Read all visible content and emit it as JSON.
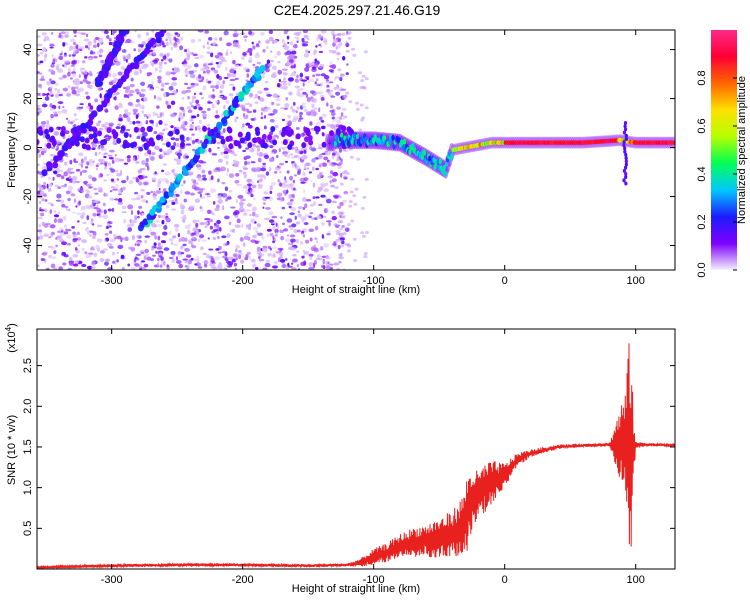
{
  "title": "C2E4.2025.297.21.46.G19",
  "chart_data": [
    {
      "type": "heatmap",
      "name": "spectrogram",
      "xlabel": "Height of straight line (km)",
      "ylabel": "Frequency (Hz)",
      "xlim": [
        -357,
        130
      ],
      "ylim": [
        -50,
        48
      ],
      "xticks": [
        -300,
        -200,
        -100,
        0,
        100
      ],
      "xtick_labels": [
        "-300",
        "-200",
        "-100",
        "0",
        "100"
      ],
      "yticks": [
        -40,
        -20,
        0,
        20,
        40
      ],
      "ytick_labels": [
        "-40",
        "-20",
        "0",
        "20",
        "40"
      ],
      "colorbar": {
        "label": "Normalized spectral amplitude",
        "range": [
          0.0,
          1.0
        ],
        "ticks": [
          0.0,
          0.2,
          0.4,
          0.6,
          0.8
        ],
        "tick_labels": [
          "0.0",
          "0.2",
          "0.4",
          "0.6",
          "0.8"
        ],
        "colormap": [
          "#f4f0fb",
          "#7f00ff",
          "#1c1cff",
          "#00c8ff",
          "#00ff55",
          "#b4ff00",
          "#ffe000",
          "#ff6600",
          "#ff0033",
          "#ff2a8a"
        ]
      },
      "features": {
        "noise_region_x": [
          -357,
          -120
        ],
        "signal_line": [
          [
            -130,
            3
          ],
          [
            -100,
            3
          ],
          [
            -80,
            2
          ],
          [
            -60,
            -4
          ],
          [
            -45,
            -9
          ],
          [
            -40,
            -1
          ],
          [
            -30,
            0
          ],
          [
            -10,
            2
          ],
          [
            0,
            2
          ],
          [
            60,
            2
          ],
          [
            88,
            3
          ],
          [
            100,
            2
          ],
          [
            130,
            2
          ]
        ],
        "bright_streak_1": [
          [
            -277,
            -33
          ],
          [
            -185,
            32
          ]
        ],
        "bright_streak_2": [
          [
            -350,
            -10
          ],
          [
            -260,
            48
          ]
        ],
        "bright_streak_3": [
          [
            -310,
            26
          ],
          [
            -290,
            48
          ]
        ]
      }
    },
    {
      "type": "line",
      "name": "snr",
      "xlabel": "Height of straight line (km)",
      "ylabel": "SNR (10 * v/v)",
      "y_multiplier": "(x10",
      "y_multiplier_exp": "4",
      "y_multiplier_close": ")",
      "xlim": [
        -357,
        130
      ],
      "ylim": [
        0,
        2.95
      ],
      "xticks": [
        -300,
        -200,
        -100,
        0,
        100
      ],
      "xtick_labels": [
        "-300",
        "-200",
        "-100",
        "0",
        "100"
      ],
      "yticks": [
        0.5,
        1.0,
        1.5,
        2.0,
        2.5
      ],
      "ytick_labels": [
        "0.5",
        "1.0",
        "1.5",
        "2.0",
        "2.5"
      ],
      "color": "#e8211f",
      "series": [
        {
          "name": "SNR",
          "x": [
            -357,
            -300,
            -250,
            -200,
            -150,
            -120,
            -110,
            -100,
            -90,
            -80,
            -70,
            -60,
            -50,
            -40,
            -32,
            -28,
            -25,
            -20,
            -15,
            -10,
            -5,
            0,
            5,
            10,
            20,
            30,
            40,
            60,
            80,
            88,
            92,
            95,
            97,
            98,
            100,
            105,
            110,
            130
          ],
          "y": [
            0.02,
            0.04,
            0.05,
            0.05,
            0.04,
            0.05,
            0.08,
            0.15,
            0.2,
            0.28,
            0.33,
            0.35,
            0.38,
            0.42,
            0.55,
            0.7,
            0.85,
            0.9,
            1.0,
            1.05,
            1.1,
            1.15,
            1.25,
            1.35,
            1.42,
            1.46,
            1.5,
            1.52,
            1.53,
            1.55,
            1.5,
            1.52,
            1.5,
            1.5,
            1.52,
            1.53,
            1.53,
            1.52
          ],
          "spread": [
            0.01,
            0.02,
            0.02,
            0.02,
            0.02,
            0.02,
            0.05,
            0.1,
            0.12,
            0.15,
            0.18,
            0.2,
            0.25,
            0.3,
            0.35,
            0.5,
            0.4,
            0.3,
            0.3,
            0.28,
            0.22,
            0.15,
            0.12,
            0.08,
            0.05,
            0.04,
            0.03,
            0.02,
            0.02,
            0.45,
            0.7,
            1.3,
            1.4,
            0.5,
            0.04,
            0.03,
            0.02,
            0.02
          ]
        }
      ]
    }
  ]
}
